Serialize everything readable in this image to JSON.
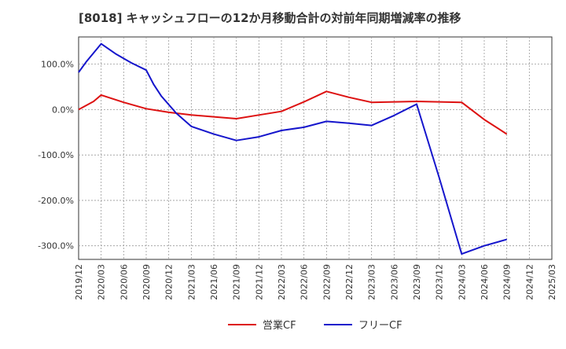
{
  "chart_data": {
    "type": "line",
    "title": "[8018]  キャッシュフローの12か月移動合計の対前年同期増減率の推移",
    "xlabel": "",
    "ylabel": "",
    "ylim": [
      -330,
      160
    ],
    "yticks": [
      100,
      0,
      -100,
      -200,
      -300
    ],
    "ytick_labels": [
      "100.0%",
      "0.0%",
      "-100.0%",
      "-200.0%",
      "-300.0%"
    ],
    "x_range": [
      "2019/12",
      "2025/03"
    ],
    "xtick_labels": [
      "2019/12",
      "2020/03",
      "2020/06",
      "2020/09",
      "2020/12",
      "2021/03",
      "2021/06",
      "2021/09",
      "2021/12",
      "2022/03",
      "2022/06",
      "2022/09",
      "2022/12",
      "2023/03",
      "2023/06",
      "2023/09",
      "2023/12",
      "2024/03",
      "2024/06",
      "2024/09",
      "2024/12",
      "2025/03"
    ],
    "grid": true,
    "legend_position": "bottom-center",
    "series": [
      {
        "name": "営業CF",
        "color": "#dd1111",
        "x": [
          "2019/12",
          "2020/02",
          "2020/03",
          "2020/06",
          "2020/09",
          "2020/12",
          "2021/03",
          "2021/06",
          "2021/09",
          "2021/12",
          "2022/03",
          "2022/06",
          "2022/09",
          "2022/12",
          "2023/03",
          "2023/06",
          "2023/09",
          "2023/12",
          "2024/03",
          "2024/06",
          "2024/09"
        ],
        "values": [
          0,
          18,
          32,
          16,
          2,
          -6,
          -12,
          -16,
          -20,
          -12,
          -4,
          17,
          40,
          27,
          16,
          17,
          18,
          17,
          16,
          -22,
          -54
        ]
      },
      {
        "name": "フリーCF",
        "color": "#1515cc",
        "x": [
          "2019/12",
          "2020/01",
          "2020/03",
          "2020/05",
          "2020/07",
          "2020/09",
          "2020/10",
          "2020/11",
          "2021/01",
          "2021/03",
          "2021/06",
          "2021/09",
          "2021/12",
          "2022/03",
          "2022/06",
          "2022/09",
          "2022/12",
          "2023/03",
          "2023/06",
          "2023/09",
          "2023/12",
          "2024/03",
          "2024/06",
          "2024/09"
        ],
        "values": [
          82,
          105,
          145,
          122,
          103,
          87,
          55,
          30,
          -8,
          -37,
          -54,
          -68,
          -60,
          -46,
          -39,
          -26,
          -30,
          -35,
          -13,
          12,
          -150,
          -318,
          -300,
          -286
        ]
      }
    ]
  }
}
